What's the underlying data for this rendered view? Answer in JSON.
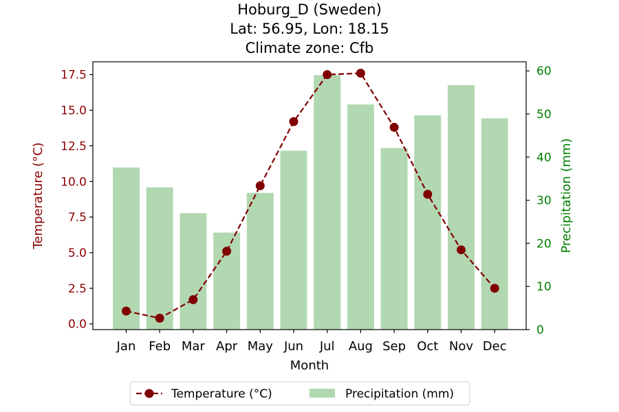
{
  "chart_data": {
    "type": "bar+line",
    "title_lines": [
      "Hoburg_D (Sweden)",
      "Lat: 56.95, Lon: 18.15",
      "Climate zone: Cfb"
    ],
    "xlabel": "Month",
    "ylabel_left": "Temperature (°C)",
    "ylabel_right": "Precipitation (mm)",
    "categories": [
      "Jan",
      "Feb",
      "Mar",
      "Apr",
      "May",
      "Jun",
      "Jul",
      "Aug",
      "Sep",
      "Oct",
      "Nov",
      "Dec"
    ],
    "y_left": {
      "lim": [
        -0.4,
        18.4
      ],
      "ticks": [
        "0.0",
        "2.5",
        "5.0",
        "7.5",
        "10.0",
        "12.5",
        "15.0",
        "17.5"
      ]
    },
    "y_right": {
      "lim": [
        0,
        62.1
      ],
      "ticks": [
        "0",
        "10",
        "20",
        "30",
        "40",
        "50",
        "60"
      ]
    },
    "series": [
      {
        "name": "Precipitation (mm)",
        "kind": "bar",
        "color": "#b2d8b2",
        "values": [
          37.6,
          33.0,
          27.0,
          22.5,
          31.7,
          41.5,
          59.0,
          52.2,
          42.1,
          49.7,
          56.7,
          49.0
        ]
      },
      {
        "name": "Temperature (°C)",
        "kind": "line",
        "style": "dashed",
        "marker": "circle",
        "color": "#800000",
        "values": [
          0.9,
          0.4,
          1.7,
          5.1,
          9.7,
          14.2,
          17.5,
          17.6,
          13.8,
          9.1,
          5.2,
          2.5
        ]
      }
    ],
    "legend": {
      "position": "bottom-center",
      "entries": [
        "Temperature (°C)",
        "Precipitation (mm)"
      ]
    },
    "colors": {
      "left_axis": "#8b0000",
      "right_axis": "#008000",
      "line": "#800000",
      "bar": "#b2d8b2"
    },
    "grid": false
  }
}
